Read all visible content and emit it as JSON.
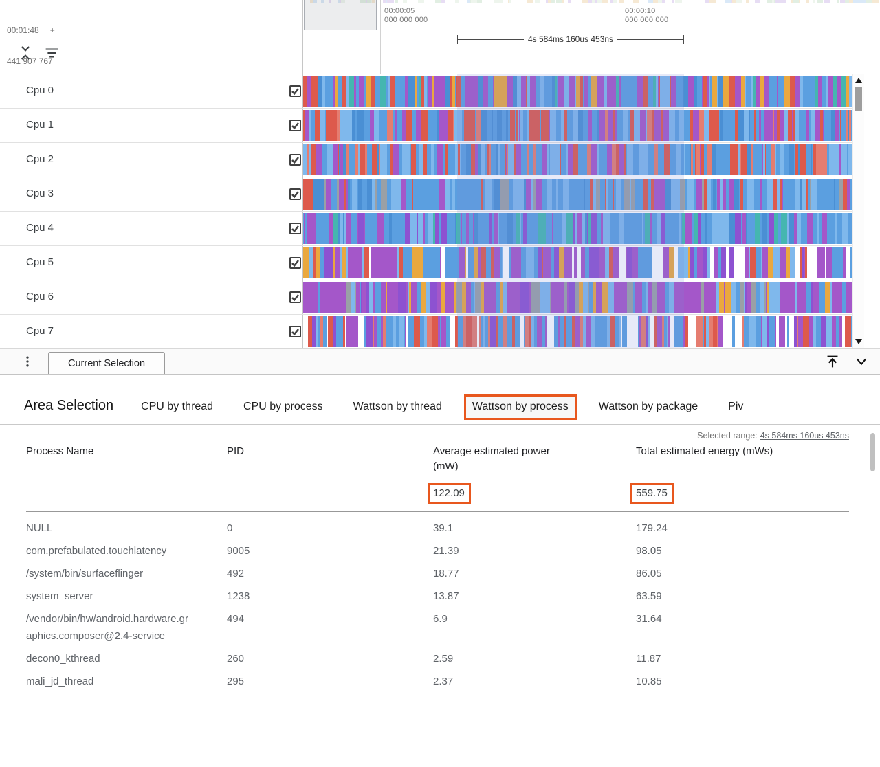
{
  "colors": {
    "annotation": "#e8571e",
    "selection_overlay": "rgba(122,140,216,0.18)",
    "track_palette": {
      "blue": "#5b9fe0",
      "blue2": "#7fb8ec",
      "blue3": "#4a8fd4",
      "purple": "#a457c9",
      "purple2": "#8d52d1",
      "red": "#dd5a4c",
      "red2": "#e57d70",
      "orange": "#eaa83f",
      "teal": "#45b6b0",
      "green": "#57b768",
      "gray": "#9aa0a6",
      "white": "#ffffff"
    },
    "minimap_mix": [
      "#cfe6d2",
      "#c2dcf4",
      "#d8c8ee",
      "#f1dcb8",
      "#ffffff",
      "#ffffff",
      "#e4f0e2",
      "#ffffff"
    ]
  },
  "timeline": {
    "clock": {
      "time": "00:01:48",
      "plus": "+",
      "nanos": "441 907 767"
    },
    "markers": [
      {
        "sec": "00:00:05",
        "ns": "000 000 000"
      },
      {
        "sec": "00:00:10",
        "ns": "000 000 000"
      }
    ],
    "span_label": "4s 584ms 160us 453ns",
    "tracks": [
      {
        "label": "Cpu 0",
        "checked": true,
        "seed": 11,
        "mix": [
          "blue",
          "blue",
          "blue2",
          "purple",
          "orange",
          "blue3",
          "red",
          "purple",
          "blue",
          "teal",
          "blue2",
          "purple"
        ]
      },
      {
        "label": "Cpu 1",
        "checked": true,
        "seed": 23,
        "mix": [
          "red",
          "blue",
          "blue2",
          "purple",
          "red",
          "blue",
          "red2",
          "blue3",
          "purple",
          "blue"
        ]
      },
      {
        "label": "Cpu 2",
        "checked": true,
        "seed": 37,
        "mix": [
          "blue",
          "red",
          "blue2",
          "blue",
          "red",
          "red2",
          "blue3",
          "purple",
          "blue",
          "blue2"
        ]
      },
      {
        "label": "Cpu 3",
        "checked": true,
        "seed": 41,
        "mix": [
          "blue",
          "blue2",
          "blue",
          "purple",
          "blue3",
          "red",
          "blue",
          "gray",
          "blue2",
          "blue"
        ]
      },
      {
        "label": "Cpu 4",
        "checked": true,
        "seed": 53,
        "mix": [
          "blue",
          "blue2",
          "purple",
          "blue",
          "purple2",
          "blue",
          "blue3",
          "teal",
          "blue",
          "purple"
        ]
      },
      {
        "label": "Cpu 5",
        "checked": true,
        "seed": 67,
        "mix": [
          "purple",
          "blue",
          "white",
          "purple2",
          "orange",
          "blue2",
          "purple",
          "white",
          "red",
          "purple",
          "blue"
        ]
      },
      {
        "label": "Cpu 6",
        "checked": true,
        "seed": 71,
        "mix": [
          "gray",
          "purple",
          "purple2",
          "blue",
          "purple",
          "blue2",
          "purple",
          "orange",
          "purple"
        ]
      },
      {
        "label": "Cpu 7",
        "checked": true,
        "seed": 83,
        "mix": [
          "blue",
          "purple",
          "white",
          "blue2",
          "purple2",
          "blue",
          "red",
          "purple",
          "white",
          "red2",
          "blue"
        ]
      }
    ]
  },
  "divider": {
    "tab_label": "Current Selection"
  },
  "details": {
    "title": "Area Selection",
    "tabs": [
      {
        "label": "CPU by thread",
        "active": false
      },
      {
        "label": "CPU by process",
        "active": false
      },
      {
        "label": "Wattson by thread",
        "active": false
      },
      {
        "label": "Wattson by process",
        "active": true
      },
      {
        "label": "Wattson by package",
        "active": false
      },
      {
        "label": "Piv",
        "active": false
      }
    ],
    "selected_range": {
      "label": "Selected range:",
      "value": "4s 584ms 160us 453ns"
    },
    "table": {
      "columns": [
        "Process Name",
        "PID",
        "Average estimated power (mW)",
        "Total estimated energy (mWs)"
      ],
      "totals": {
        "power": "122.09",
        "energy": "559.75"
      },
      "rows": [
        {
          "name": "NULL",
          "pid": "0",
          "power": "39.1",
          "energy": "179.24"
        },
        {
          "name": "com.prefabulated.touchlatency",
          "pid": "9005",
          "power": "21.39",
          "energy": "98.05"
        },
        {
          "name": "/system/bin/surfaceflinger",
          "pid": "492",
          "power": "18.77",
          "energy": "86.05"
        },
        {
          "name": "system_server",
          "pid": "1238",
          "power": "13.87",
          "energy": "63.59"
        },
        {
          "name": "/vendor/bin/hw/android.hardware.graphics.composer@2.4-service",
          "pid": "494",
          "power": "6.9",
          "energy": "31.64"
        },
        {
          "name": "decon0_kthread",
          "pid": "260",
          "power": "2.59",
          "energy": "11.87"
        },
        {
          "name": "mali_jd_thread",
          "pid": "295",
          "power": "2.37",
          "energy": "10.85"
        }
      ]
    }
  }
}
